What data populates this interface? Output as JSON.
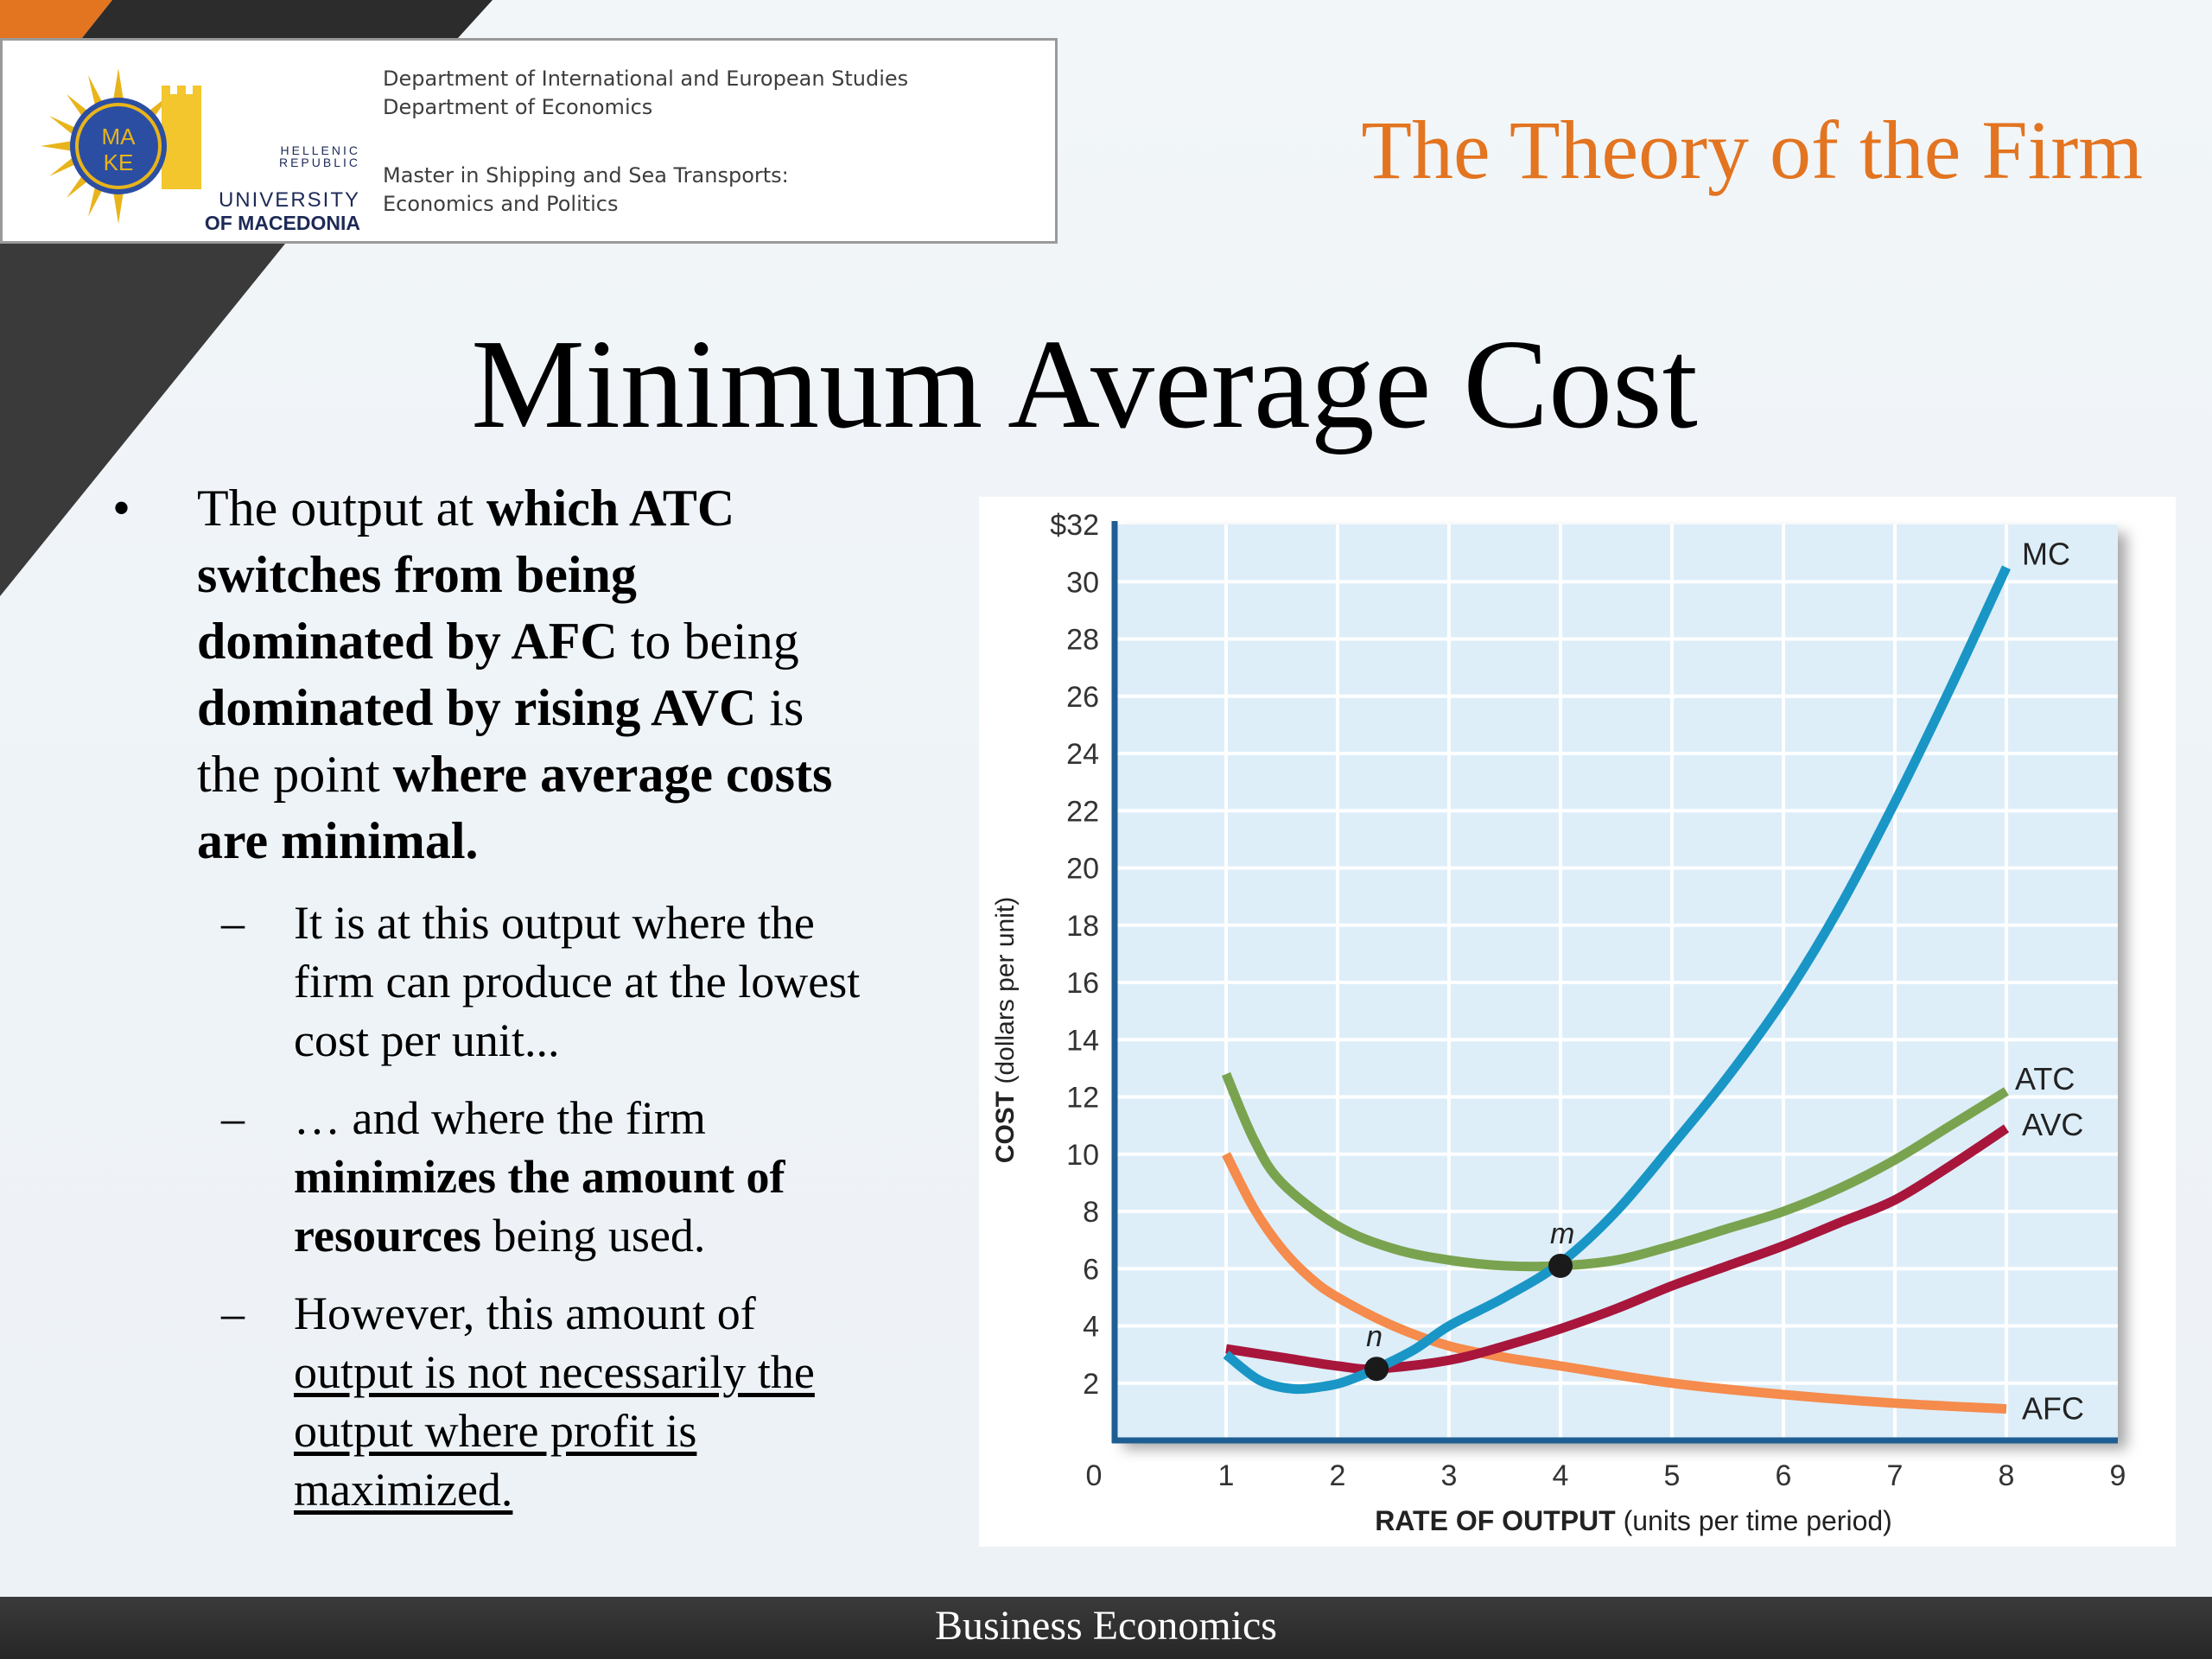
{
  "header": {
    "logo": {
      "name": "University of Macedonia seal",
      "seal_text_top": "MA",
      "seal_text_bottom": "KE",
      "hellenic_line1": "HELLENIC",
      "hellenic_line2": "REPUBLIC",
      "university_line1": "UNIVERSITY",
      "university_line2": "OF MACEDONIA"
    },
    "dept_line1": "Department of International and European Studies",
    "dept_line2": "Department of Economics",
    "program_line1": "Master in Shipping and Sea Transports:",
    "program_line2": "Economics and Politics"
  },
  "topic_title": "The Theory of the Firm",
  "slide_title": "Minimum Average Cost",
  "bullets": {
    "main": {
      "bullet_glyph": "•",
      "t1": "The output at ",
      "b1": "which ATC switches from being dominated by AFC",
      "t2": " to being ",
      "b2": "dominated by rising AVC",
      "t3": " is the point ",
      "b3": "where average costs are minimal."
    },
    "subs": {
      "dash_glyph": "–",
      "s1": "It is at this output where the firm can produce at the lowest cost per unit...",
      "s2_t1": "… and where the firm ",
      "s2_b1": "minimizes the amount of resources",
      "s2_t2": " being used.",
      "s3_t1": "However, this amount of ",
      "s3_u1": "output is not necessarily the output where profit is maximized."
    }
  },
  "footer": {
    "text": "Business Economics"
  },
  "colors": {
    "orange_accent": "#e37420",
    "mc": "#1a96c6",
    "atc": "#7aa34f",
    "avc": "#a8163c",
    "afc": "#f58b4c",
    "plot_bg": "#ddeef9",
    "axis": "#1f5e92"
  },
  "chart_data": {
    "type": "line",
    "xlabel_bold": "RATE OF OUTPUT",
    "xlabel_rest": " (units per time period)",
    "ylabel_bold": "COST",
    "ylabel_rest": " (dollars per unit)",
    "xlim": [
      0,
      9
    ],
    "ylim": [
      0,
      32
    ],
    "x_ticks": [
      "0",
      "1",
      "2",
      "3",
      "4",
      "5",
      "6",
      "7",
      "8",
      "9"
    ],
    "y_ticks": [
      "2",
      "4",
      "6",
      "8",
      "10",
      "12",
      "14",
      "16",
      "18",
      "20",
      "22",
      "24",
      "26",
      "28",
      "30",
      "$32"
    ],
    "grid": true,
    "series": [
      {
        "name": "MC",
        "color": "#1a96c6",
        "x": [
          1,
          1.3,
          1.6,
          1.9,
          2.1,
          2.4,
          2.7,
          3,
          3.5,
          4,
          4.5,
          5,
          5.5,
          6,
          6.5,
          7,
          7.5,
          8
        ],
        "y": [
          3.0,
          2.1,
          1.8,
          1.9,
          2.1,
          2.6,
          3.2,
          4.0,
          5.0,
          6.2,
          8.0,
          10.3,
          12.7,
          15.4,
          18.6,
          22.3,
          26.3,
          30.5
        ]
      },
      {
        "name": "ATC",
        "color": "#7aa34f",
        "x": [
          1,
          1.25,
          1.5,
          2,
          2.5,
          3,
          3.5,
          4,
          4.5,
          5,
          5.5,
          6,
          6.5,
          7,
          7.5,
          8
        ],
        "y": [
          12.8,
          10.5,
          9.0,
          7.5,
          6.7,
          6.3,
          6.1,
          6.1,
          6.3,
          6.8,
          7.4,
          8.0,
          8.8,
          9.8,
          11.0,
          12.2
        ]
      },
      {
        "name": "AVC",
        "color": "#a8163c",
        "x": [
          1,
          1.5,
          2,
          2.35,
          3,
          3.5,
          4,
          4.5,
          5,
          5.5,
          6,
          6.5,
          7,
          7.5,
          8
        ],
        "y": [
          3.2,
          2.9,
          2.6,
          2.5,
          2.8,
          3.3,
          3.9,
          4.6,
          5.4,
          6.1,
          6.8,
          7.6,
          8.4,
          9.6,
          10.9
        ]
      },
      {
        "name": "AFC",
        "color": "#f58b4c",
        "x": [
          1,
          1.25,
          1.5,
          1.75,
          2,
          2.5,
          3,
          3.5,
          4,
          5,
          6,
          7,
          8
        ],
        "y": [
          10.0,
          8.1,
          6.7,
          5.7,
          5.0,
          4.0,
          3.3,
          2.9,
          2.6,
          2.0,
          1.6,
          1.3,
          1.1
        ]
      }
    ],
    "annotations": [
      {
        "label": "m",
        "x": 4,
        "y": 6.1
      },
      {
        "label": "n",
        "x": 2.35,
        "y": 2.5
      }
    ]
  }
}
